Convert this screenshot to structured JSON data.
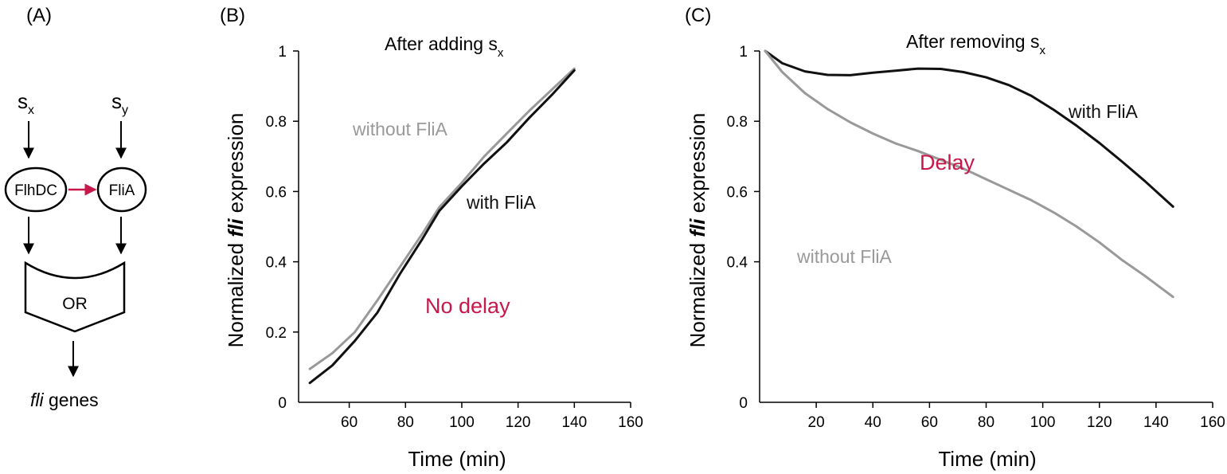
{
  "panels": {
    "a": {
      "label": "(A)",
      "inputs": [
        {
          "base": "s",
          "sub": "x"
        },
        {
          "base": "s",
          "sub": "y"
        }
      ],
      "nodes": [
        "FlhDC",
        "FliA"
      ],
      "gate": "OR",
      "output": {
        "italic": "fli",
        "rest": " genes"
      },
      "colors": {
        "activation_arrow": "#c8174a"
      }
    },
    "b": {
      "label": "(B)"
    },
    "c": {
      "label": "(C)"
    }
  },
  "axis_title_y": {
    "pre": "Normalized ",
    "italic": "fli",
    "post": " expression"
  },
  "chart_data": [
    {
      "type": "line",
      "panel": "B",
      "title": {
        "text": "After adding s",
        "sub": "x"
      },
      "xlabel": "Time (min)",
      "xlim": [
        42,
        160
      ],
      "ylim": [
        0,
        1
      ],
      "xticks": [
        60,
        80,
        100,
        120,
        140,
        160
      ],
      "yticks": [
        0,
        0.2,
        0.4,
        0.6,
        0.8,
        1
      ],
      "ytick_labels": [
        "0",
        "0.2",
        "0.4",
        "0.6",
        "0.8",
        "1"
      ],
      "series": [
        {
          "name": "without FliA",
          "color": "#999999",
          "x": [
            46,
            54,
            62,
            70,
            78,
            86,
            92,
            100,
            108,
            116,
            124,
            132,
            140
          ],
          "y": [
            0.095,
            0.14,
            0.2,
            0.29,
            0.385,
            0.48,
            0.555,
            0.625,
            0.7,
            0.765,
            0.83,
            0.89,
            0.95
          ]
        },
        {
          "name": "with FliA",
          "color": "#111111",
          "x": [
            46,
            54,
            62,
            70,
            78,
            86,
            92,
            100,
            108,
            116,
            124,
            132,
            140
          ],
          "y": [
            0.055,
            0.105,
            0.175,
            0.255,
            0.365,
            0.465,
            0.545,
            0.615,
            0.68,
            0.74,
            0.81,
            0.875,
            0.945
          ]
        }
      ],
      "annotations": [
        {
          "text": "without FliA",
          "color": "#999999"
        },
        {
          "text": "with FliA",
          "color": "#111111"
        },
        {
          "text": "No delay",
          "color": "#c8174a"
        }
      ]
    },
    {
      "type": "line",
      "panel": "C",
      "title": {
        "text": "After removing s",
        "sub": "x"
      },
      "xlabel": "Time (min)",
      "xlim": [
        0,
        160
      ],
      "ylim": [
        0,
        1
      ],
      "xticks": [
        20,
        40,
        60,
        80,
        100,
        120,
        140,
        160
      ],
      "yticks": [
        0,
        0.4,
        0.6,
        0.8,
        1
      ],
      "ytick_labels": [
        "0",
        "0.4",
        "0.6",
        "0.8",
        "1"
      ],
      "series": [
        {
          "name": "with FliA",
          "color": "#111111",
          "x": [
            2,
            8,
            16,
            24,
            32,
            40,
            48,
            56,
            64,
            72,
            80,
            88,
            96,
            104,
            112,
            120,
            128,
            136,
            146
          ],
          "y": [
            1.0,
            0.965,
            0.942,
            0.932,
            0.931,
            0.938,
            0.944,
            0.95,
            0.949,
            0.94,
            0.925,
            0.903,
            0.872,
            0.832,
            0.787,
            0.738,
            0.685,
            0.63,
            0.557
          ]
        },
        {
          "name": "without FliA",
          "color": "#999999",
          "x": [
            2,
            8,
            16,
            24,
            32,
            40,
            48,
            56,
            64,
            72,
            80,
            88,
            96,
            104,
            112,
            120,
            128,
            136,
            146
          ],
          "y": [
            1.0,
            0.94,
            0.88,
            0.835,
            0.797,
            0.765,
            0.737,
            0.715,
            0.69,
            0.665,
            0.635,
            0.605,
            0.575,
            0.54,
            0.5,
            0.455,
            0.405,
            0.36,
            0.3
          ]
        }
      ],
      "annotations": [
        {
          "text": "with FliA",
          "color": "#111111"
        },
        {
          "text": "Delay",
          "color": "#c8174a"
        },
        {
          "text": "without FliA",
          "color": "#999999"
        }
      ]
    }
  ]
}
